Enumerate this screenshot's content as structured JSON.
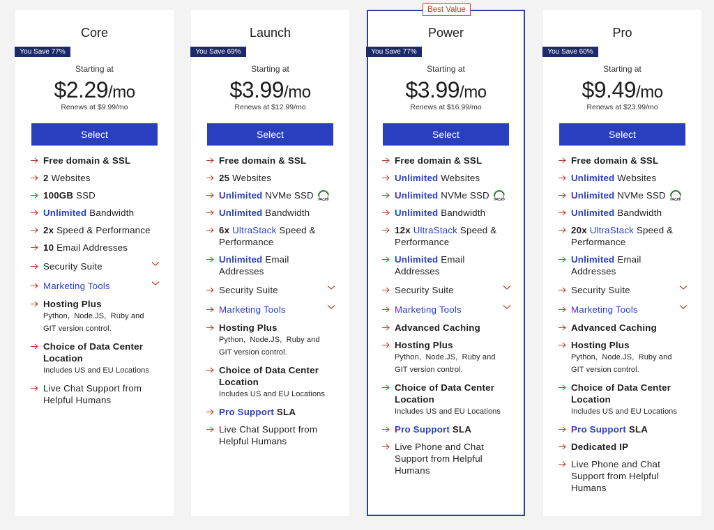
{
  "badge": "Best Value",
  "highlight_plan": 2,
  "plans": [
    {
      "name": "Core",
      "savings": "You Save 77%",
      "starting": "Starting at",
      "price": "$2.29",
      "per": "/mo",
      "renews": "Renews at $9.99/mo",
      "button": "Select",
      "features": [
        {
          "parts": [
            {
              "text": "Free domain & SSL",
              "style": "bold"
            }
          ]
        },
        {
          "parts": [
            {
              "text": "2",
              "style": "bold"
            },
            {
              "text": " Websites",
              "style": "plain"
            }
          ]
        },
        {
          "parts": [
            {
              "text": "100GB",
              "style": "bold"
            },
            {
              "text": " SSD",
              "style": "plain"
            }
          ]
        },
        {
          "parts": [
            {
              "text": "Unlimited",
              "style": "accent-bold"
            },
            {
              "text": " Bandwidth",
              "style": "plain"
            }
          ]
        },
        {
          "parts": [
            {
              "text": "2x",
              "style": "bold"
            },
            {
              "text": " Speed & Performance",
              "style": "plain"
            }
          ]
        },
        {
          "parts": [
            {
              "text": "10",
              "style": "bold"
            },
            {
              "text": " Email Addresses",
              "style": "plain"
            }
          ]
        },
        {
          "parts": [
            {
              "text": "Security Suite",
              "style": "plain"
            }
          ],
          "expand": true
        },
        {
          "parts": [
            {
              "text": "Marketing Tools",
              "style": "accent"
            }
          ],
          "expand": true
        },
        {
          "parts": [
            {
              "text": "Hosting Plus",
              "style": "bold"
            }
          ],
          "note": "Python,  Node.JS,  Ruby and GIT version control."
        },
        {
          "parts": [
            {
              "text": "Choice of Data Center Location",
              "style": "bold"
            }
          ],
          "note": "Includes US and EU Locations"
        },
        {
          "parts": [
            {
              "text": "Live Chat Support from Helpful Humans",
              "style": "plain"
            }
          ]
        }
      ]
    },
    {
      "name": "Launch",
      "savings": "You Save 69%",
      "starting": "Starting at",
      "price": "$3.99",
      "per": "/mo",
      "renews": "Renews at $12.99/mo",
      "button": "Select",
      "features": [
        {
          "parts": [
            {
              "text": "Free domain & SSL",
              "style": "bold"
            }
          ]
        },
        {
          "parts": [
            {
              "text": "25",
              "style": "bold"
            },
            {
              "text": " Websites",
              "style": "plain"
            }
          ]
        },
        {
          "parts": [
            {
              "text": "Unlimited",
              "style": "accent-bold"
            },
            {
              "text": " NVMe SSD",
              "style": "plain"
            }
          ],
          "icon": "SPEED"
        },
        {
          "parts": [
            {
              "text": "Unlimited",
              "style": "accent-bold"
            },
            {
              "text": " Bandwidth",
              "style": "plain"
            }
          ]
        },
        {
          "parts": [
            {
              "text": "6x ",
              "style": "bold"
            },
            {
              "text": "UltraStack",
              "style": "accent"
            },
            {
              "text": " Speed & Performance",
              "style": "plain"
            }
          ]
        },
        {
          "parts": [
            {
              "text": "Unlimited",
              "style": "accent-bold"
            },
            {
              "text": " Email Addresses",
              "style": "plain"
            }
          ]
        },
        {
          "parts": [
            {
              "text": "Security Suite",
              "style": "plain"
            }
          ],
          "expand": true
        },
        {
          "parts": [
            {
              "text": "Marketing Tools",
              "style": "accent"
            }
          ],
          "expand": true
        },
        {
          "parts": [
            {
              "text": "Hosting Plus",
              "style": "bold"
            }
          ],
          "note": "Python,  Node.JS,  Ruby and GIT version control."
        },
        {
          "parts": [
            {
              "text": "Choice of Data Center Location",
              "style": "bold"
            }
          ],
          "note": "Includes US and EU Locations"
        },
        {
          "parts": [
            {
              "text": "Pro Support",
              "style": "accent-bold"
            },
            {
              "text": " SLA",
              "style": "bold"
            }
          ]
        },
        {
          "parts": [
            {
              "text": "Live Chat Support from Helpful Humans",
              "style": "plain"
            }
          ]
        }
      ]
    },
    {
      "name": "Power",
      "savings": "You Save 77%",
      "starting": "Starting at",
      "price": "$3.99",
      "per": "/mo",
      "renews": "Renews at $16.99/mo",
      "button": "Select",
      "features": [
        {
          "parts": [
            {
              "text": "Free domain & SSL",
              "style": "bold"
            }
          ]
        },
        {
          "parts": [
            {
              "text": "Unlimited",
              "style": "accent-bold"
            },
            {
              "text": " Websites",
              "style": "plain"
            }
          ]
        },
        {
          "parts": [
            {
              "text": "Unlimited",
              "style": "accent-bold"
            },
            {
              "text": " NVMe SSD",
              "style": "plain"
            }
          ],
          "icon": "SPEED"
        },
        {
          "parts": [
            {
              "text": "Unlimited",
              "style": "accent-bold"
            },
            {
              "text": " Bandwidth",
              "style": "plain"
            }
          ]
        },
        {
          "parts": [
            {
              "text": "12x ",
              "style": "bold"
            },
            {
              "text": "UltraStack",
              "style": "accent"
            },
            {
              "text": " Speed & Performance",
              "style": "plain"
            }
          ]
        },
        {
          "parts": [
            {
              "text": "Unlimited",
              "style": "accent-bold"
            },
            {
              "text": " Email Addresses",
              "style": "plain"
            }
          ]
        },
        {
          "parts": [
            {
              "text": "Security Suite",
              "style": "plain"
            }
          ],
          "expand": true
        },
        {
          "parts": [
            {
              "text": "Marketing Tools",
              "style": "accent"
            }
          ],
          "expand": true
        },
        {
          "parts": [
            {
              "text": "Advanced Caching",
              "style": "bold"
            }
          ]
        },
        {
          "parts": [
            {
              "text": "Hosting Plus",
              "style": "bold"
            }
          ],
          "note": "Python,  Node.JS,  Ruby and GIT version control."
        },
        {
          "parts": [
            {
              "text": "Choice of Data Center Location",
              "style": "bold"
            }
          ],
          "note": "Includes US and EU Locations"
        },
        {
          "parts": [
            {
              "text": "Pro Support",
              "style": "accent-bold"
            },
            {
              "text": " SLA",
              "style": "bold"
            }
          ]
        },
        {
          "parts": [
            {
              "text": "Live Phone and Chat Support from Helpful Humans",
              "style": "plain"
            }
          ]
        }
      ]
    },
    {
      "name": "Pro",
      "savings": "You Save 60%",
      "starting": "Starting at",
      "price": "$9.49",
      "per": "/mo",
      "renews": "Renews at $23.99/mo",
      "button": "Select",
      "features": [
        {
          "parts": [
            {
              "text": "Free domain & SSL",
              "style": "bold"
            }
          ]
        },
        {
          "parts": [
            {
              "text": "Unlimited",
              "style": "accent-bold"
            },
            {
              "text": " Websites",
              "style": "plain"
            }
          ]
        },
        {
          "parts": [
            {
              "text": "Unlimited",
              "style": "accent-bold"
            },
            {
              "text": " NVMe SSD",
              "style": "plain"
            }
          ],
          "icon": "SPEED"
        },
        {
          "parts": [
            {
              "text": "Unlimited",
              "style": "accent-bold"
            },
            {
              "text": " Bandwidth",
              "style": "plain"
            }
          ]
        },
        {
          "parts": [
            {
              "text": "20x ",
              "style": "bold"
            },
            {
              "text": "UltraStack",
              "style": "accent"
            },
            {
              "text": " Speed & Performance",
              "style": "plain"
            }
          ]
        },
        {
          "parts": [
            {
              "text": "Unlimited",
              "style": "accent-bold"
            },
            {
              "text": " Email Addresses",
              "style": "plain"
            }
          ]
        },
        {
          "parts": [
            {
              "text": "Security Suite",
              "style": "plain"
            }
          ],
          "expand": true
        },
        {
          "parts": [
            {
              "text": "Marketing Tools",
              "style": "accent"
            }
          ],
          "expand": true
        },
        {
          "parts": [
            {
              "text": "Advanced Caching",
              "style": "bold"
            }
          ]
        },
        {
          "parts": [
            {
              "text": "Hosting Plus",
              "style": "bold"
            }
          ],
          "note": "Python,  Node.JS,  Ruby and GIT version control."
        },
        {
          "parts": [
            {
              "text": "Choice of Data Center Location",
              "style": "bold"
            }
          ],
          "note": "Includes US and EU Locations"
        },
        {
          "parts": [
            {
              "text": "Pro Support",
              "style": "accent-bold"
            },
            {
              "text": " SLA",
              "style": "bold"
            }
          ]
        },
        {
          "parts": [
            {
              "text": "Dedicated IP",
              "style": "bold"
            }
          ]
        },
        {
          "parts": [
            {
              "text": "Live Phone and Chat Support from Helpful Humans",
              "style": "plain"
            }
          ]
        }
      ]
    }
  ]
}
